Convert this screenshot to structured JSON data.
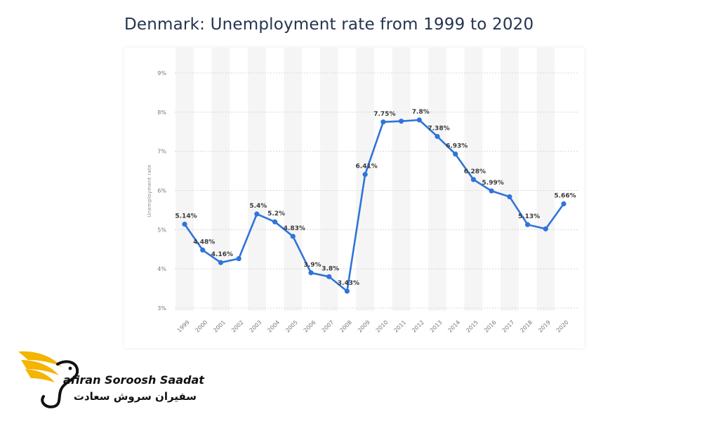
{
  "title": "Denmark: Unemployment rate from 1999 to 2020",
  "brand": {
    "name_en": "afiran Soroosh Saadat",
    "name_fa": "سفیران سروش سعادت"
  },
  "colors": {
    "line": "#2f74d9",
    "title": "#24344f",
    "brand_accent": "#f4b400"
  },
  "chart_data": {
    "type": "line",
    "title": "Denmark: Unemployment rate from 1999 to 2020",
    "xlabel": "",
    "ylabel": "Unemployment rate",
    "ylim": [
      3,
      9
    ],
    "yticks": [
      "3%",
      "4%",
      "5%",
      "6%",
      "7%",
      "8%",
      "9%"
    ],
    "grid": true,
    "x": [
      "1999",
      "2000",
      "2001",
      "2002",
      "2003",
      "2004",
      "2005",
      "2006",
      "2007",
      "2008",
      "2009",
      "2010",
      "2011",
      "2012",
      "2013",
      "2014",
      "2015",
      "2016",
      "2017",
      "2018",
      "2019",
      "2020"
    ],
    "series": [
      {
        "values": [
          5.14,
          4.48,
          4.16,
          4.26,
          5.4,
          5.2,
          4.83,
          3.9,
          3.8,
          3.43,
          6.41,
          7.75,
          7.77,
          7.8,
          7.38,
          6.93,
          6.28,
          5.99,
          5.84,
          5.13,
          5.02,
          5.66
        ],
        "labels": [
          "5.14%",
          "4.48%",
          "4.16%",
          "",
          "5.4%",
          "5.2%",
          "4.83%",
          "3.9%",
          "3.8%",
          "3.43%",
          "6.41%",
          "7.75%",
          "",
          "7.8%",
          "7.38%",
          "6.93%",
          "6.28%",
          "5.99%",
          "",
          "5.13%",
          "",
          "5.66%"
        ]
      }
    ]
  }
}
